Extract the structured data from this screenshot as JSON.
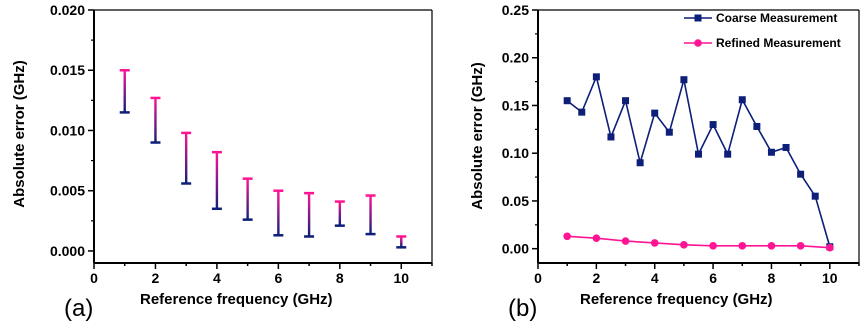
{
  "colors": {
    "navy": "#0d1f78",
    "pink": "#ff1493",
    "axis": "#000000"
  },
  "chart_data": [
    {
      "type": "errorbar",
      "panel_label": "(a)",
      "xlabel": "Reference frequency (GHz)",
      "ylabel": "Absolute error (GHz)",
      "xlim": [
        0,
        11
      ],
      "ylim": [
        -0.001,
        0.02
      ],
      "xticks": [
        0,
        2,
        4,
        6,
        8,
        10
      ],
      "yticks": [
        0.0,
        0.005,
        0.01,
        0.015,
        0.02
      ],
      "ytick_labels": [
        "0.000",
        "0.005",
        "0.010",
        "0.015",
        "0.020"
      ],
      "x": [
        1,
        2,
        3,
        4,
        5,
        6,
        7,
        8,
        9,
        10
      ],
      "low": [
        0.0115,
        0.009,
        0.0056,
        0.0035,
        0.0026,
        0.0013,
        0.0012,
        0.0021,
        0.0014,
        0.0003
      ],
      "high": [
        0.015,
        0.0127,
        0.0098,
        0.0082,
        0.006,
        0.005,
        0.0048,
        0.0041,
        0.0046,
        0.0012
      ],
      "grid": false
    },
    {
      "type": "line",
      "panel_label": "(b)",
      "xlabel": "Reference frequency (GHz)",
      "ylabel": "Absolute error (GHz)",
      "xlim": [
        0,
        11
      ],
      "ylim": [
        -0.015,
        0.25
      ],
      "xticks": [
        0,
        2,
        4,
        6,
        8,
        10
      ],
      "yticks": [
        0.0,
        0.05,
        0.1,
        0.15,
        0.2,
        0.25
      ],
      "ytick_labels": [
        "0.00",
        "0.05",
        "0.10",
        "0.15",
        "0.20",
        "0.25"
      ],
      "legend_position": "top-right",
      "grid": false,
      "series": [
        {
          "name": "Coarse Measurement",
          "marker": "square",
          "color": "#0d1f78",
          "x": [
            1,
            1.5,
            2,
            2.5,
            3,
            3.5,
            4,
            4.5,
            5,
            5.5,
            6,
            6.5,
            7,
            7.5,
            8,
            8.5,
            9,
            9.5,
            10
          ],
          "y": [
            0.155,
            0.143,
            0.18,
            0.117,
            0.155,
            0.09,
            0.142,
            0.122,
            0.177,
            0.099,
            0.13,
            0.099,
            0.156,
            0.128,
            0.101,
            0.106,
            0.078,
            0.055,
            0.002
          ]
        },
        {
          "name": "Refined Measurement",
          "marker": "circle",
          "color": "#ff1493",
          "x": [
            1,
            2,
            3,
            4,
            5,
            6,
            7,
            8,
            9,
            10
          ],
          "y": [
            0.013,
            0.011,
            0.008,
            0.006,
            0.004,
            0.003,
            0.003,
            0.003,
            0.003,
            0.001
          ]
        }
      ]
    }
  ]
}
